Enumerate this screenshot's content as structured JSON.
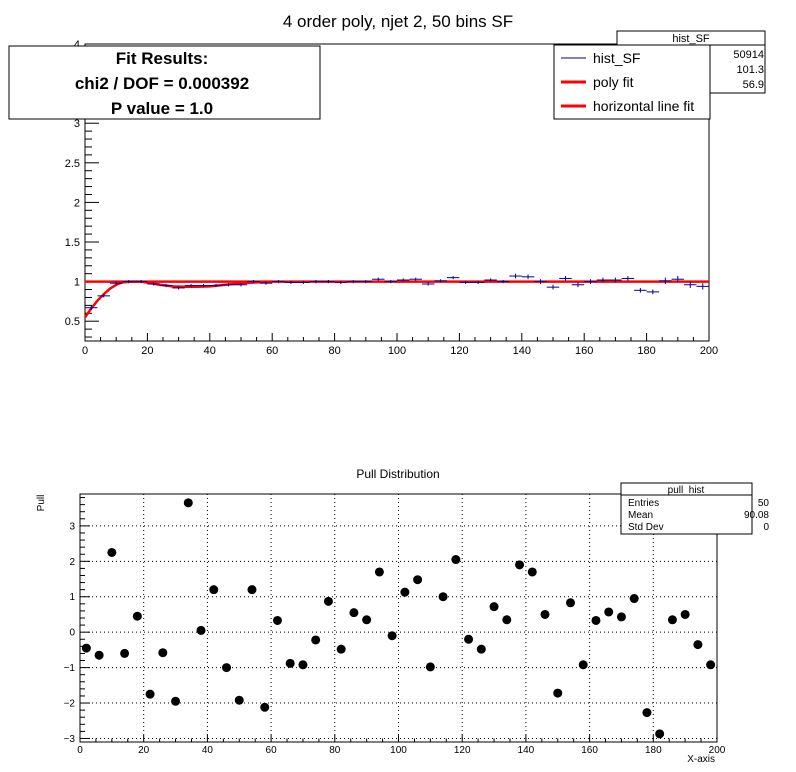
{
  "chart_data": [
    {
      "type": "scatter",
      "title": "4 order poly, njet 2, 50 bins SF",
      "xlim": [
        0,
        200
      ],
      "ylim": [
        0.25,
        4.0
      ],
      "x_ticks": [
        "0",
        "20",
        "40",
        "60",
        "80",
        "100",
        "120",
        "140",
        "160",
        "180",
        "200"
      ],
      "y_ticks": [
        "0.5",
        "1",
        "1.5",
        "2",
        "2.5",
        "3",
        "3.5",
        "4"
      ],
      "y_tick_values": [
        0.5,
        1,
        1.5,
        2,
        2.5,
        3,
        3.5,
        4
      ],
      "x_tick_values": [
        0,
        20,
        40,
        60,
        80,
        100,
        120,
        140,
        160,
        180,
        200
      ],
      "series": [
        {
          "name": "hist_SF",
          "color": "#000099",
          "style": "errorbar",
          "x": [
            2,
            6,
            10,
            14,
            18,
            22,
            26,
            30,
            34,
            38,
            42,
            46,
            50,
            54,
            58,
            62,
            66,
            70,
            74,
            78,
            82,
            86,
            90,
            94,
            98,
            102,
            106,
            110,
            114,
            118,
            122,
            126,
            130,
            134,
            138,
            142,
            146,
            150,
            154,
            158,
            162,
            166,
            170,
            174,
            178,
            182,
            186,
            190,
            194,
            198
          ],
          "y": [
            0.67,
            0.82,
            0.98,
            1.0,
            1.0,
            0.97,
            0.95,
            0.92,
            0.95,
            0.95,
            0.95,
            0.96,
            0.96,
            1.0,
            0.98,
            1.0,
            0.99,
            0.99,
            1.0,
            1.0,
            0.99,
            1.0,
            1.0,
            1.03,
            1.0,
            1.02,
            1.03,
            0.97,
            1.01,
            1.05,
            0.99,
            0.99,
            1.02,
            1.0,
            1.07,
            1.06,
            1.0,
            0.93,
            1.04,
            0.96,
            1.0,
            1.02,
            1.02,
            1.04,
            0.89,
            0.87,
            1.01,
            1.03,
            0.96,
            0.94
          ],
          "yerr": [
            0.03,
            0.02,
            0.02,
            0.02,
            0.02,
            0.02,
            0.02,
            0.02,
            0.02,
            0.02,
            0.02,
            0.02,
            0.02,
            0.02,
            0.02,
            0.02,
            0.02,
            0.02,
            0.02,
            0.02,
            0.02,
            0.02,
            0.02,
            0.02,
            0.02,
            0.02,
            0.02,
            0.02,
            0.02,
            0.02,
            0.02,
            0.02,
            0.02,
            0.02,
            0.03,
            0.03,
            0.03,
            0.03,
            0.03,
            0.03,
            0.03,
            0.03,
            0.03,
            0.03,
            0.03,
            0.03,
            0.04,
            0.04,
            0.04,
            0.04
          ]
        },
        {
          "name": "poly fit",
          "color": "#ff0000",
          "style": "line",
          "x": [
            0,
            2,
            4,
            6,
            8,
            10,
            12,
            15,
            18,
            21,
            24,
            28,
            32,
            36,
            40,
            45,
            50,
            55,
            60
          ],
          "y": [
            0.55,
            0.66,
            0.76,
            0.84,
            0.91,
            0.96,
            0.99,
            1.0,
            1.0,
            0.98,
            0.96,
            0.94,
            0.935,
            0.935,
            0.94,
            0.96,
            0.98,
            0.99,
            1.0
          ]
        },
        {
          "name": "horizontal line fit",
          "color": "#ff0000",
          "style": "line",
          "x": [
            0,
            200
          ],
          "y": [
            1.0,
            1.0
          ]
        }
      ],
      "legend": {
        "placement": "top-right",
        "entries": [
          {
            "label": "hist_SF",
            "color": "#000099",
            "width": 1
          },
          {
            "label": "poly fit",
            "color": "#ff0000",
            "width": 3
          },
          {
            "label": "horizontal line fit",
            "color": "#ff0000",
            "width": 3
          }
        ]
      },
      "stats_box": {
        "title": "hist_SF",
        "values": [
          "50914",
          "101.3",
          "56.9"
        ]
      },
      "fit_box": {
        "lines": [
          "Fit Results:",
          "chi2 / DOF = 0.000392",
          "P value = 1.0"
        ]
      }
    },
    {
      "type": "scatter",
      "title": "Pull Distribution",
      "xlabel": "X-axis",
      "ylabel": "Pull",
      "xlim": [
        0,
        200
      ],
      "ylim": [
        -3.1,
        3.9
      ],
      "grid": true,
      "x_ticks": [
        "0",
        "20",
        "40",
        "60",
        "80",
        "100",
        "120",
        "140",
        "160",
        "180",
        "200"
      ],
      "x_tick_values": [
        0,
        20,
        40,
        60,
        80,
        100,
        120,
        140,
        160,
        180,
        200
      ],
      "y_ticks": [
        "−3",
        "−2",
        "−1",
        "0",
        "1",
        "2",
        "3"
      ],
      "y_tick_values": [
        -3,
        -2,
        -1,
        0,
        1,
        2,
        3
      ],
      "series": [
        {
          "color": "#000000",
          "x": [
            2,
            6,
            10,
            14,
            18,
            22,
            26,
            30,
            34,
            38,
            42,
            46,
            50,
            54,
            58,
            62,
            66,
            70,
            74,
            78,
            82,
            86,
            90,
            94,
            98,
            102,
            106,
            110,
            114,
            118,
            122,
            126,
            130,
            134,
            138,
            142,
            146,
            150,
            154,
            158,
            162,
            166,
            170,
            174,
            178,
            182,
            186,
            190,
            194,
            198
          ],
          "y": [
            -0.45,
            -0.65,
            2.25,
            -0.6,
            0.45,
            -1.75,
            -0.58,
            -1.95,
            3.65,
            0.05,
            1.2,
            -1.0,
            -1.92,
            1.2,
            -2.12,
            0.33,
            -0.88,
            -0.92,
            -0.22,
            0.87,
            -0.48,
            0.55,
            0.35,
            1.7,
            -0.1,
            1.13,
            1.48,
            -0.98,
            1.0,
            2.05,
            -0.2,
            -0.48,
            0.72,
            0.35,
            1.9,
            1.7,
            0.5,
            -1.72,
            0.83,
            -0.92,
            0.33,
            0.57,
            0.43,
            0.95,
            -2.27,
            -2.87,
            0.35,
            0.5,
            -0.35,
            -0.92
          ]
        }
      ],
      "stats_box": {
        "title": "pull_hist",
        "rows": [
          {
            "label": "Entries",
            "value": "50"
          },
          {
            "label": "Mean",
            "value": "90.08"
          },
          {
            "label": "Std Dev",
            "value": "0"
          }
        ]
      }
    }
  ]
}
